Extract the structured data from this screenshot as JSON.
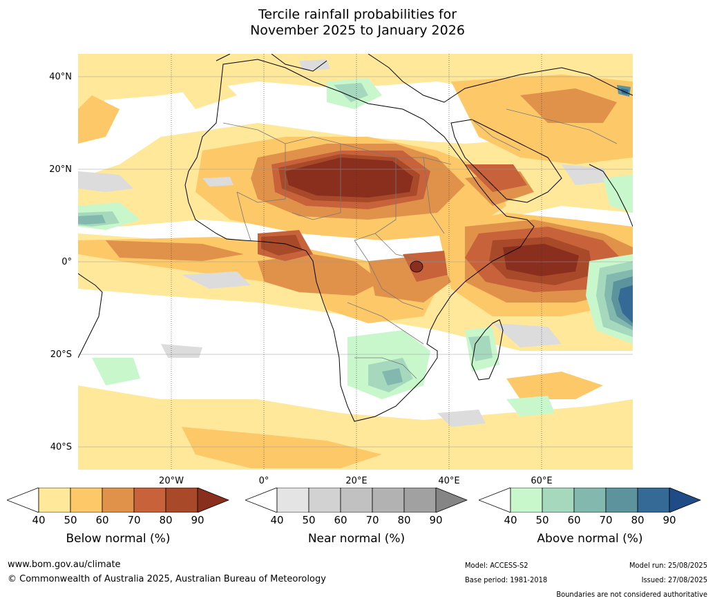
{
  "title_line1": "Tercile rainfall probabilities for",
  "title_line2": "November 2025 to January 2026",
  "lat_labels": [
    "40°N",
    "20°N",
    "0°",
    "20°S",
    "40°S"
  ],
  "lon_labels": [
    "20°W",
    "0°",
    "20°E",
    "40°E",
    "60°E"
  ],
  "colorbars": [
    {
      "caption": "Below normal (%)",
      "ticks": [
        "40",
        "50",
        "60",
        "70",
        "80",
        "90"
      ],
      "colors": [
        "#ffffff",
        "#ffe89a",
        "#fdc868",
        "#e0924a",
        "#c8623a",
        "#a84a2a",
        "#8a2e1e"
      ]
    },
    {
      "caption": "Near normal (%)",
      "ticks": [
        "40",
        "50",
        "60",
        "70",
        "80",
        "90"
      ],
      "colors": [
        "#ffffff",
        "#e4e4e4",
        "#d2d2d2",
        "#c1c1c1",
        "#b2b2b2",
        "#a1a1a1",
        "#858585"
      ]
    },
    {
      "caption": "Above normal (%)",
      "ticks": [
        "40",
        "50",
        "60",
        "70",
        "80",
        "90"
      ],
      "colors": [
        "#ffffff",
        "#c8f7cc",
        "#a6d8bd",
        "#82b8ad",
        "#5c939d",
        "#356996",
        "#1f4c86"
      ]
    }
  ],
  "footer": {
    "website": "www.bom.gov.au/climate",
    "copyright": "© Commonwealth of Australia 2025, Australian Bureau of Meteorology",
    "model": "Model: ACCESS-S2",
    "base_period": "Base period: 1981-2018",
    "model_run": "Model run: 25/08/2025",
    "issued": "Issued: 27/08/2025",
    "disclaimer": "Boundaries are not considered authoritative"
  }
}
